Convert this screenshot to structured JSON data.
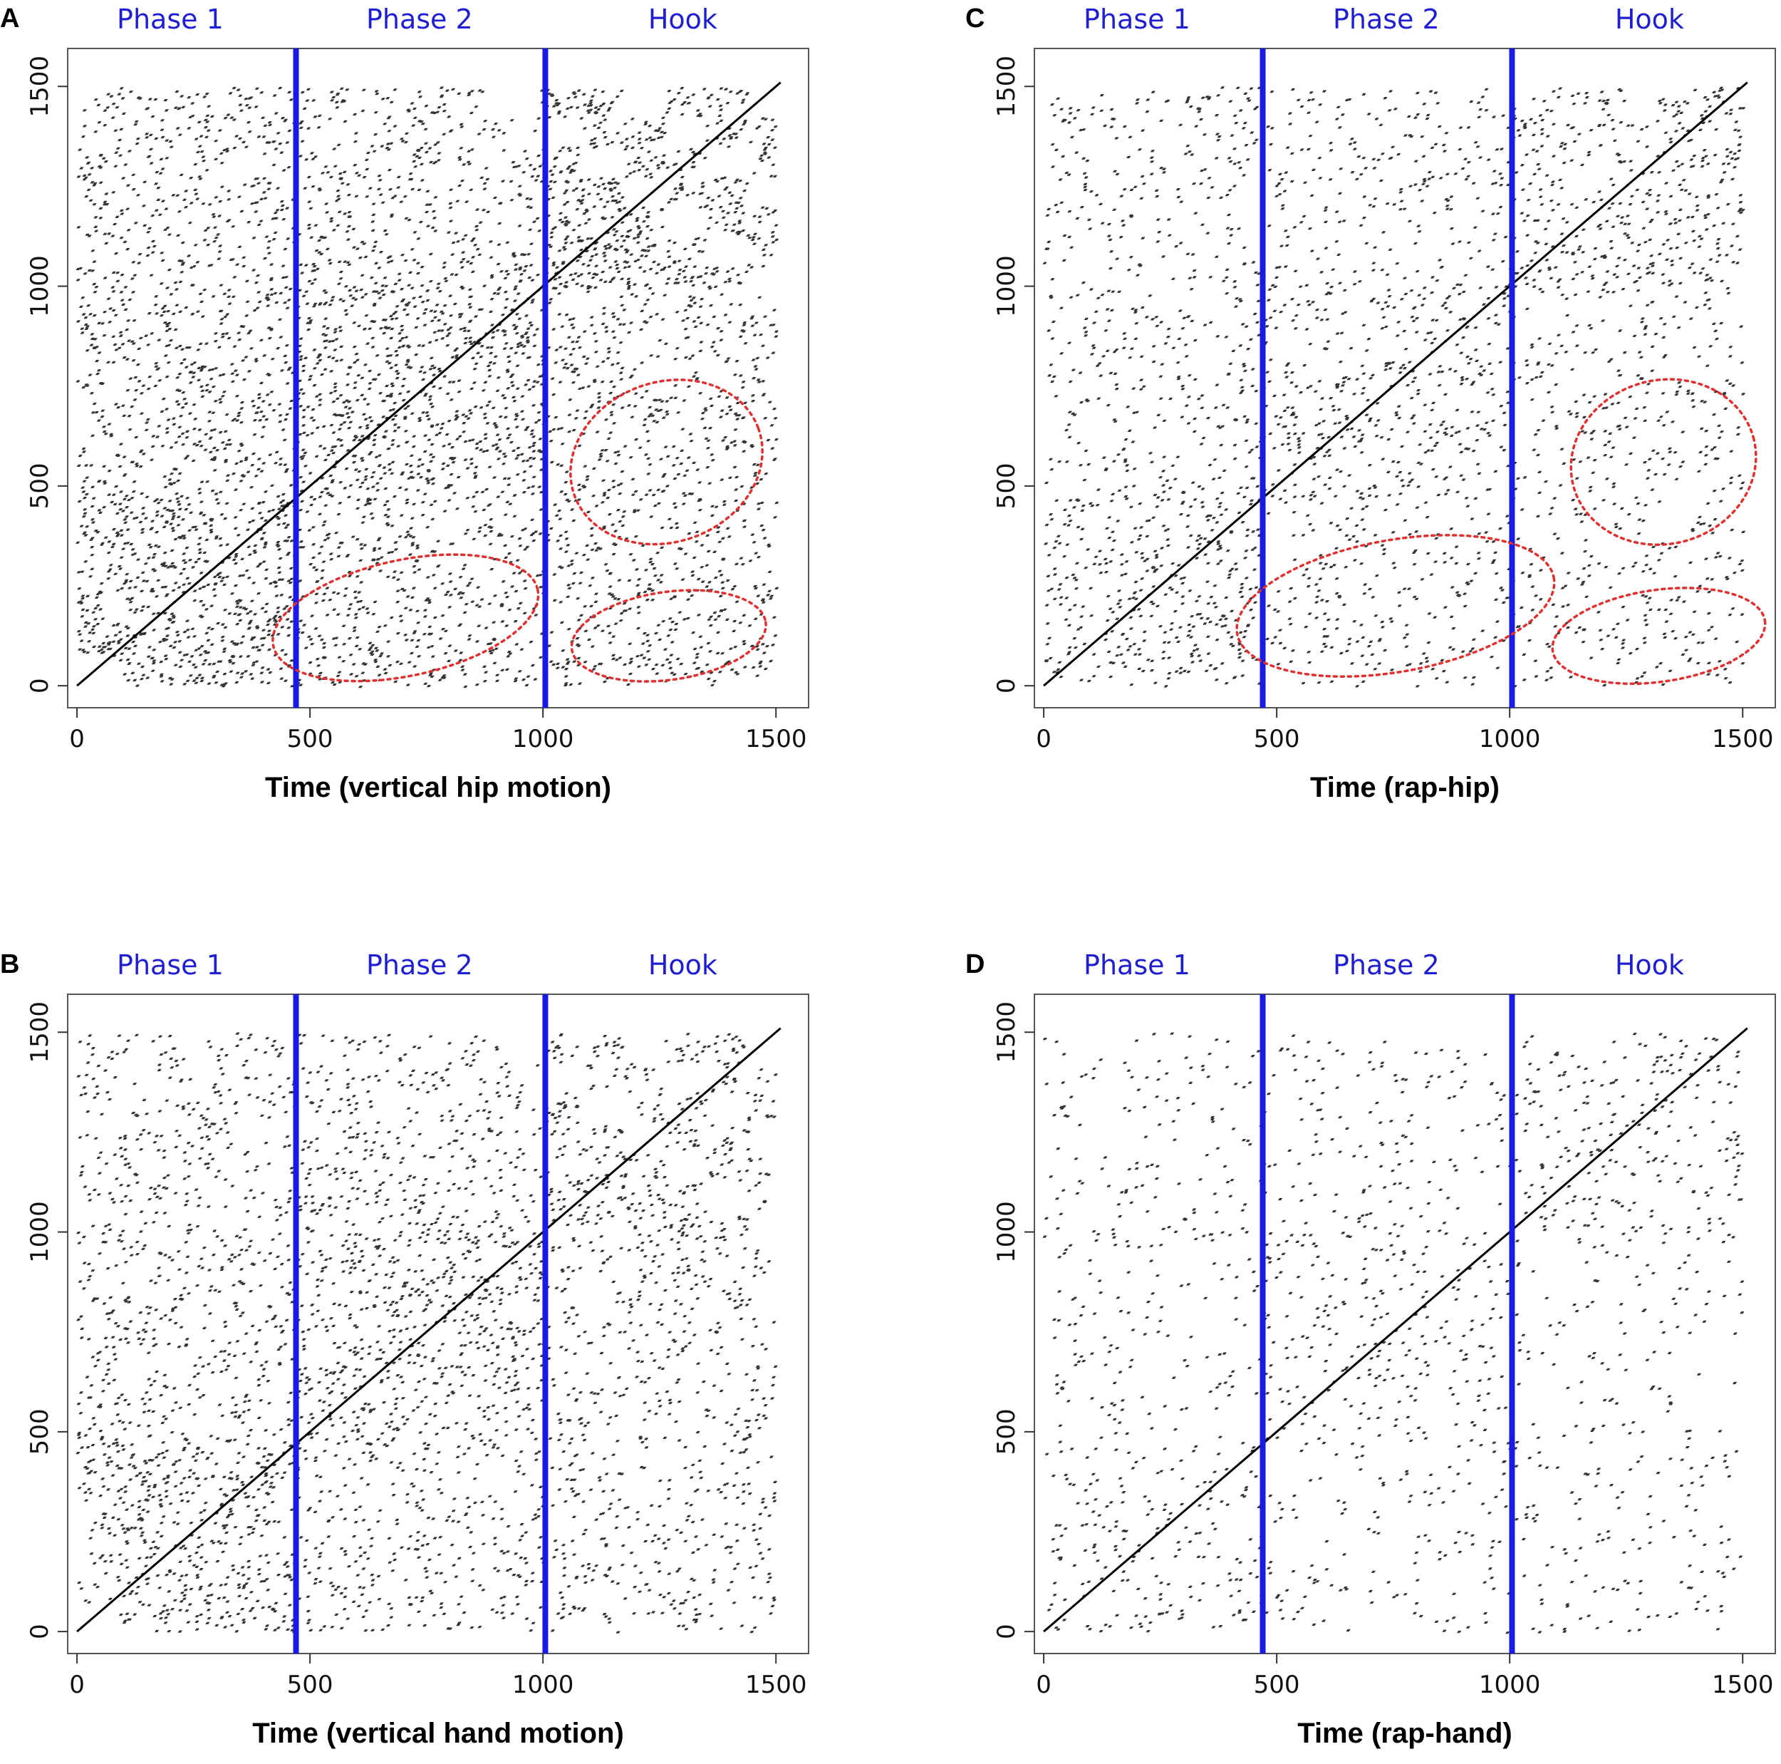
{
  "phase_color": "#1a1ae6",
  "ellipse_color": "#e03030",
  "chart_data": [
    {
      "type": "scatter",
      "panel": "A",
      "title": "",
      "xlabel": "Time (vertical hip motion)",
      "ylabel": "",
      "xlim": [
        -20,
        1570
      ],
      "ylim": [
        -55,
        1595
      ],
      "xticks": [
        0,
        500,
        1000,
        1500
      ],
      "yticks": [
        0,
        500,
        1000,
        1500
      ],
      "phase_boundaries": [
        470,
        1005
      ],
      "phase_labels": [
        {
          "label": "Phase 1",
          "x": 200
        },
        {
          "label": "Phase 2",
          "x": 735
        },
        {
          "label": "Hook",
          "x": 1300
        }
      ],
      "density": 0.85,
      "ellipses": [
        {
          "cx": 705,
          "cy": 170,
          "rx": 290,
          "ry": 145,
          "angle": 12
        },
        {
          "cx": 1265,
          "cy": 560,
          "rx": 210,
          "ry": 200,
          "angle": 20
        },
        {
          "cx": 1270,
          "cy": 125,
          "rx": 210,
          "ry": 110,
          "angle": 8
        }
      ]
    },
    {
      "type": "scatter",
      "panel": "C",
      "title": "",
      "xlabel": "Time (rap-hip)",
      "ylabel": "",
      "xlim": [
        -20,
        1570
      ],
      "ylim": [
        -55,
        1595
      ],
      "xticks": [
        0,
        500,
        1000,
        1500
      ],
      "yticks": [
        0,
        500,
        1000,
        1500
      ],
      "phase_boundaries": [
        470,
        1005
      ],
      "phase_labels": [
        {
          "label": "Phase 1",
          "x": 200
        },
        {
          "label": "Phase 2",
          "x": 735
        },
        {
          "label": "Hook",
          "x": 1300
        }
      ],
      "density": 0.45,
      "ellipses": [
        {
          "cx": 755,
          "cy": 200,
          "rx": 345,
          "ry": 165,
          "angle": 10
        },
        {
          "cx": 1330,
          "cy": 560,
          "rx": 200,
          "ry": 205,
          "angle": 15
        },
        {
          "cx": 1320,
          "cy": 125,
          "rx": 230,
          "ry": 115,
          "angle": 8
        }
      ]
    },
    {
      "type": "scatter",
      "panel": "B",
      "title": "",
      "xlabel": "Time (vertical hand motion)",
      "ylabel": "",
      "xlim": [
        -20,
        1570
      ],
      "ylim": [
        -55,
        1595
      ],
      "xticks": [
        0,
        500,
        1000,
        1500
      ],
      "yticks": [
        0,
        500,
        1000,
        1500
      ],
      "phase_boundaries": [
        470,
        1005
      ],
      "phase_labels": [
        {
          "label": "Phase 1",
          "x": 200
        },
        {
          "label": "Phase 2",
          "x": 735
        },
        {
          "label": "Hook",
          "x": 1300
        }
      ],
      "density": 0.6,
      "ellipses": []
    },
    {
      "type": "scatter",
      "panel": "D",
      "title": "",
      "xlabel": "Time (rap-hand)",
      "ylabel": "",
      "xlim": [
        -20,
        1570
      ],
      "ylim": [
        -55,
        1595
      ],
      "xticks": [
        0,
        500,
        1000,
        1500
      ],
      "yticks": [
        0,
        500,
        1000,
        1500
      ],
      "phase_boundaries": [
        470,
        1005
      ],
      "phase_labels": [
        {
          "label": "Phase 1",
          "x": 200
        },
        {
          "label": "Phase 2",
          "x": 735
        },
        {
          "label": "Hook",
          "x": 1300
        }
      ],
      "density": 0.25,
      "ellipses": []
    }
  ]
}
